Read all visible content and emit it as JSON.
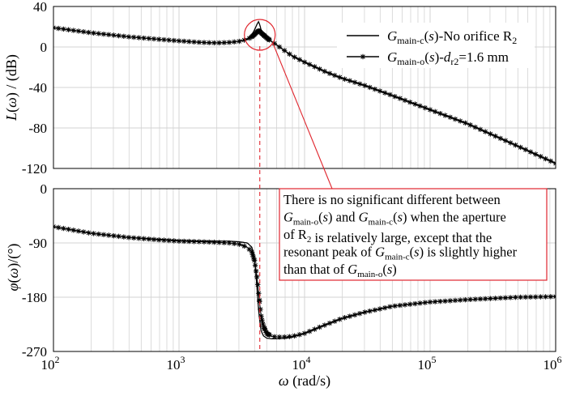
{
  "chart_data": [
    {
      "type": "line",
      "panel": "magnitude",
      "ylabel": "L(ω) / (dB)",
      "ylim": [
        -120,
        40
      ],
      "yticks": [
        "40",
        "0",
        "-40",
        "-80",
        "-120"
      ],
      "xscale": "log",
      "xlim": [
        100,
        1000000
      ],
      "grid": true,
      "series": [
        {
          "name": "Gmain-c(s)-No orifice R2",
          "x": [
            100,
            200,
            400,
            700,
            1000,
            1500,
            2000,
            2500,
            3000,
            3500,
            3800,
            4000,
            4200,
            4300,
            4400,
            4500,
            4700,
            5000,
            5500,
            6000,
            7000,
            8000,
            10000,
            15000,
            20000,
            30000,
            50000,
            100000,
            200000,
            500000,
            1000000
          ],
          "y": [
            19,
            14,
            10,
            7.5,
            6,
            4.5,
            4,
            4.5,
            5.5,
            8,
            12,
            17,
            23,
            25,
            22,
            17,
            13,
            9,
            5,
            2,
            -4,
            -9,
            -15,
            -25,
            -31,
            -38,
            -48,
            -62,
            -76,
            -98,
            -115
          ]
        },
        {
          "name": "Gmain-o(s)-dr2=1.6 mm",
          "x": [
            100,
            200,
            400,
            700,
            1000,
            1500,
            2000,
            2500,
            3000,
            3500,
            3800,
            4000,
            4200,
            4300,
            4400,
            4500,
            4700,
            5000,
            5500,
            6000,
            7000,
            8000,
            10000,
            15000,
            20000,
            30000,
            50000,
            100000,
            200000,
            500000,
            1000000
          ],
          "y": [
            19,
            14,
            10,
            7.5,
            6,
            4.5,
            4,
            4.5,
            5.5,
            7.5,
            10,
            12.5,
            15,
            16,
            15.5,
            14,
            12,
            9,
            5,
            2,
            -4,
            -9,
            -15,
            -25,
            -31,
            -38,
            -48,
            -62,
            -76,
            -98,
            -115
          ]
        }
      ],
      "annotation": {
        "circle_at": [
          4400,
          12
        ],
        "dashed_line_x": 4400
      }
    },
    {
      "type": "line",
      "panel": "phase",
      "ylabel": "φ(ω)/(°)",
      "xlabel": "ω (rad/s)",
      "ylim": [
        -270,
        0
      ],
      "yticks": [
        "0",
        "-90",
        "-180",
        "-270"
      ],
      "xscale": "log",
      "xlim": [
        100,
        1000000
      ],
      "xticks": [
        "10^2",
        "10^3",
        "10^4",
        "10^5",
        "10^6"
      ],
      "grid": true,
      "series": [
        {
          "name": "Gmain-c(s)-No orifice R2",
          "x": [
            100,
            200,
            400,
            700,
            1000,
            1500,
            2000,
            2500,
            3000,
            3500,
            3800,
            4000,
            4200,
            4300,
            4400,
            4500,
            4700,
            5000,
            5500,
            6000,
            7000,
            8000,
            10000,
            15000,
            20000,
            30000,
            50000,
            100000,
            200000,
            500000,
            1000000
          ],
          "y": [
            -63,
            -74,
            -81,
            -84,
            -86,
            -87,
            -87,
            -87,
            -88,
            -90,
            -97,
            -115,
            -170,
            -200,
            -220,
            -235,
            -244,
            -248,
            -249,
            -249,
            -248,
            -246,
            -240,
            -225,
            -215,
            -205,
            -195,
            -188,
            -184,
            -180,
            -179
          ]
        },
        {
          "name": "Gmain-o(s)-dr2=1.6 mm",
          "x": [
            100,
            200,
            400,
            700,
            1000,
            1500,
            2000,
            2500,
            3000,
            3500,
            3800,
            4000,
            4200,
            4300,
            4400,
            4500,
            4700,
            5000,
            5500,
            6000,
            7000,
            8000,
            10000,
            15000,
            20000,
            30000,
            50000,
            100000,
            200000,
            500000,
            1000000
          ],
          "y": [
            -63,
            -74,
            -81,
            -85,
            -87,
            -88,
            -89,
            -90,
            -92,
            -97,
            -105,
            -120,
            -150,
            -172,
            -192,
            -210,
            -228,
            -240,
            -245,
            -246,
            -246,
            -245,
            -240,
            -225,
            -215,
            -205,
            -195,
            -188,
            -184,
            -180,
            -179
          ]
        }
      ]
    }
  ],
  "legend": {
    "items": [
      {
        "pre": "G",
        "sub": "main-c",
        "post": "(s)-No orifice R",
        "post_sub": "2",
        "tail": "",
        "marker": "none"
      },
      {
        "pre": "G",
        "sub": "main-o",
        "post": "(s)-d",
        "post_sub": "r2",
        "tail": "=1.6 mm",
        "marker": "star"
      }
    ]
  },
  "annotation_text": [
    "There is no significant different between",
    "Gmain-o(s) and Gmain-c(s) when the aperture",
    "of R2 is relatively large, except that the",
    "resonant peak of Gmain-c(s) is slightly higher",
    " than that of Gmain-o(s)"
  ],
  "colors": {
    "series": "#000000",
    "grid": "#d3d3d3",
    "annotation": "#e0262e"
  }
}
